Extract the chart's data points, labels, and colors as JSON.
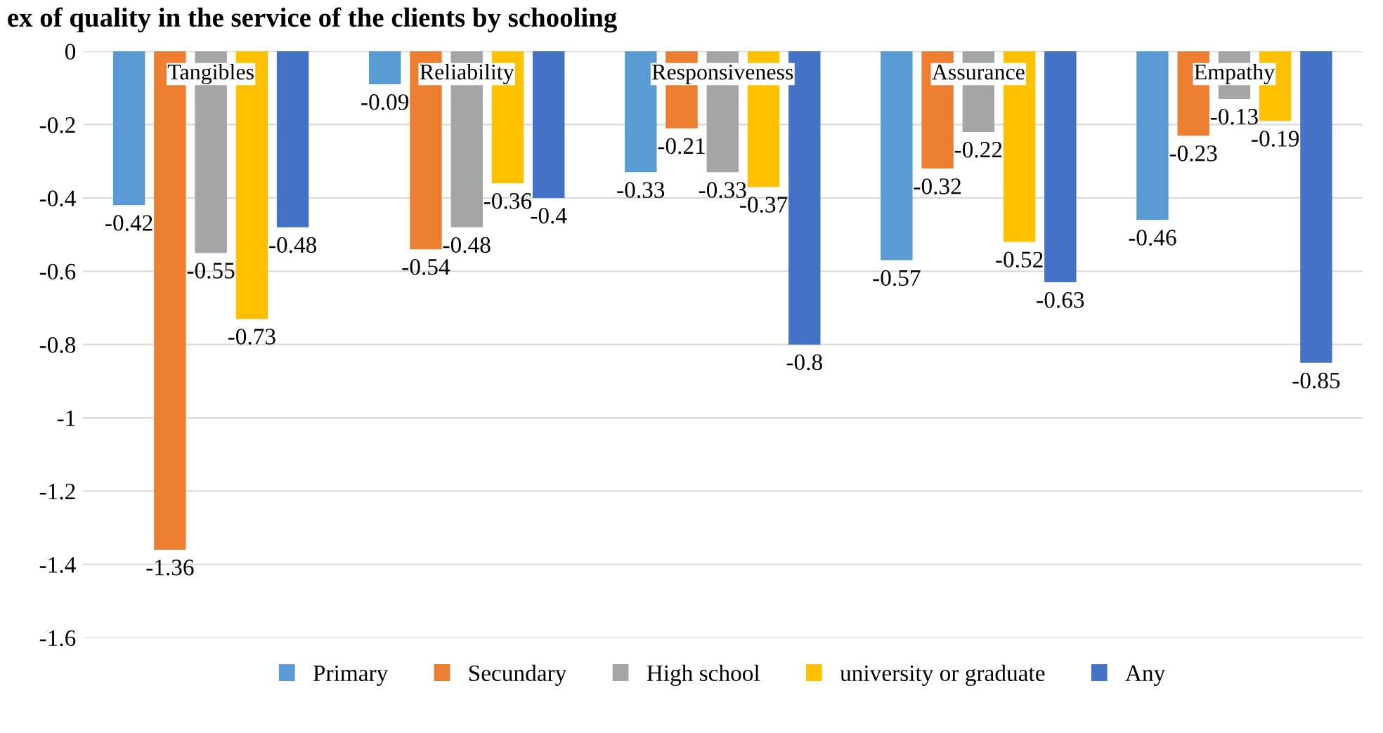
{
  "chart_data": {
    "type": "bar",
    "title": "ex of quality in the service of the clients by schooling",
    "categories": [
      "Tangibles",
      "Reliability",
      "Responsiveness",
      "Assurance",
      "Empathy"
    ],
    "series": [
      {
        "name": "Primary",
        "color": "#5b9bd5",
        "values": [
          -0.42,
          -0.09,
          -0.33,
          -0.57,
          -0.46
        ]
      },
      {
        "name": "Secundary",
        "color": "#ed7d31",
        "values": [
          -1.36,
          -0.54,
          -0.21,
          -0.32,
          -0.23
        ]
      },
      {
        "name": "High school",
        "color": "#a5a5a5",
        "values": [
          -0.55,
          -0.48,
          -0.33,
          -0.22,
          -0.13
        ]
      },
      {
        "name": "university or graduate",
        "color": "#ffc000",
        "values": [
          -0.73,
          -0.36,
          -0.37,
          -0.52,
          -0.19
        ]
      },
      {
        "name": "Any",
        "color": "#4472c4",
        "values": [
          -0.48,
          -0.4,
          -0.8,
          -0.63,
          -0.85
        ]
      }
    ],
    "ylim": [
      -1.6,
      0
    ],
    "yticks": [
      0,
      -0.2,
      -0.4,
      -0.6,
      -0.8,
      -1,
      -1.2,
      -1.4,
      -1.6
    ],
    "grid": "y",
    "legend": "bottom",
    "data_labels": true
  }
}
